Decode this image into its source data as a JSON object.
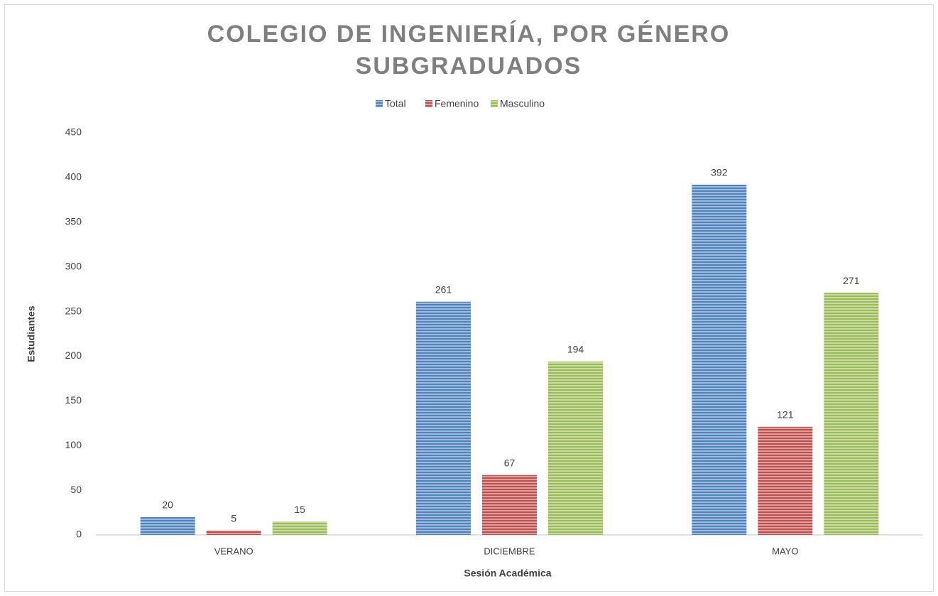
{
  "chart_data": {
    "type": "bar",
    "title": [
      "COLEGIO DE INGENIERÍA, POR GÉNERO",
      "SUBGRADUADOS"
    ],
    "x_label": "Sesión Académica",
    "y_label": "Estudiantes",
    "categories": [
      "VERANO",
      "DICIEMBRE",
      "MAYO"
    ],
    "series": [
      {
        "name": "Total",
        "color": "#4f81bd",
        "values": [
          20,
          261,
          392
        ]
      },
      {
        "name": "Femenino",
        "color": "#c0504d",
        "values": [
          5,
          67,
          121
        ]
      },
      {
        "name": "Masculino",
        "color": "#9bbb59",
        "values": [
          15,
          194,
          271
        ]
      }
    ],
    "ylim": [
      0,
      450
    ],
    "yticks": [
      0,
      50,
      100,
      150,
      200,
      250,
      300,
      350,
      400,
      450
    ],
    "grid": false,
    "legend": "top"
  }
}
